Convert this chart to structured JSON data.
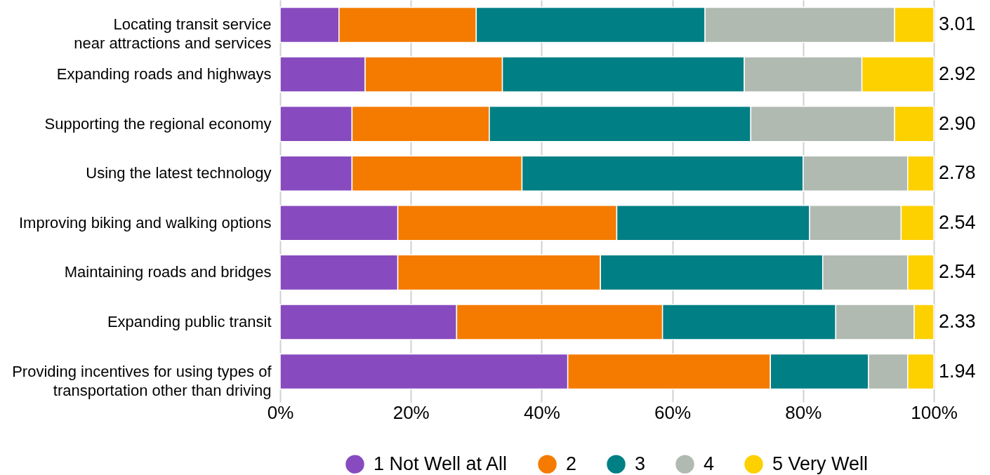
{
  "chart_data": {
    "type": "bar",
    "orientation": "horizontal",
    "stacked": true,
    "categories": [
      "Locating transit service\nnear attractions and services",
      "Expanding roads and highways",
      "Supporting the regional economy",
      "Using the latest technology",
      "Improving biking and walking options",
      "Maintaining roads and bridges",
      "Expanding public transit",
      "Providing incentives for using types of\ntransportation other than driving"
    ],
    "series": [
      {
        "name": "1 Not Well at All",
        "color": "#874bbf",
        "values": [
          9,
          13,
          11,
          11,
          18,
          18,
          27,
          44
        ]
      },
      {
        "name": "2",
        "color": "#f47b00",
        "values": [
          21,
          21,
          21,
          26,
          33.5,
          31,
          31.5,
          31
        ]
      },
      {
        "name": "3",
        "color": "#007f84",
        "values": [
          35,
          37,
          40,
          43,
          29.5,
          34,
          26.5,
          15
        ]
      },
      {
        "name": "4",
        "color": "#b1bab1",
        "values": [
          29,
          18,
          22,
          16,
          14,
          13,
          12,
          6
        ]
      },
      {
        "name": "5 Very Well",
        "color": "#fdd000",
        "values": [
          6,
          11,
          6,
          4,
          5,
          4,
          3,
          4
        ]
      }
    ],
    "xlim": [
      0,
      100
    ],
    "xticks": [
      {
        "value": 0,
        "label": "0%"
      },
      {
        "value": 20,
        "label": "20%"
      },
      {
        "value": 40,
        "label": "40%"
      },
      {
        "value": 60,
        "label": "60%"
      },
      {
        "value": 80,
        "label": "80%"
      },
      {
        "value": 100,
        "label": "100%"
      }
    ],
    "grid": "x",
    "legend": "bottom",
    "annotations": [
      "3.01",
      "2.92",
      "2.90",
      "2.78",
      "2.54",
      "2.54",
      "2.33",
      "1.94"
    ]
  }
}
